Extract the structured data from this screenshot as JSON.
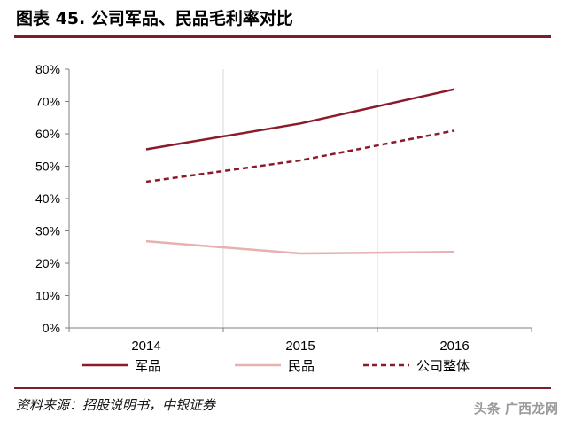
{
  "header": {
    "title": "图表 45. 公司军品、民品毛利率对比",
    "accent_color": "#7A1E2B"
  },
  "chart_data": {
    "type": "line",
    "categories": [
      "2014",
      "2015",
      "2016"
    ],
    "series": [
      {
        "name": "军品",
        "values": [
          55.2,
          63.2,
          73.8
        ],
        "color": "#8B1A2B",
        "dash": "solid"
      },
      {
        "name": "民品",
        "values": [
          26.8,
          23.0,
          23.5
        ],
        "color": "#E6B1AE",
        "dash": "solid"
      },
      {
        "name": "公司整体",
        "values": [
          45.2,
          51.8,
          61.0
        ],
        "color": "#8B1A2B",
        "dash": "dashed"
      }
    ],
    "ylim": [
      0,
      80
    ],
    "y_ticks": [
      "0%",
      "10%",
      "20%",
      "30%",
      "40%",
      "50%",
      "60%",
      "70%",
      "80%"
    ],
    "grid": "vertical",
    "legend_position": "bottom"
  },
  "footer": {
    "source": "资料来源：招股说明书，中银证券",
    "watermark": "头条 广西龙网"
  }
}
